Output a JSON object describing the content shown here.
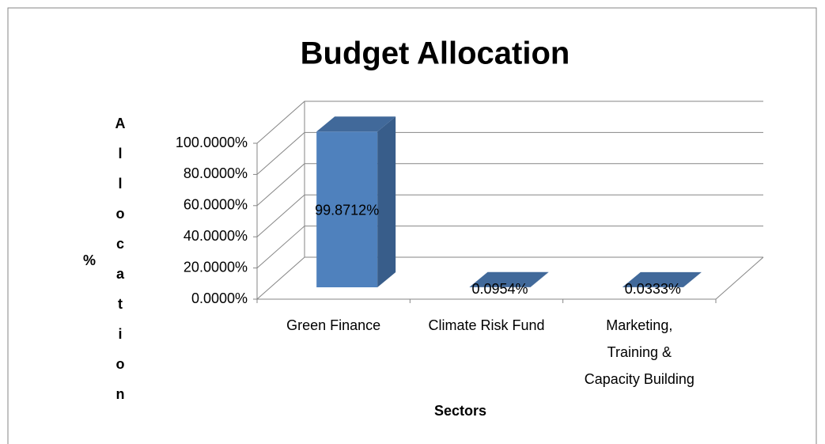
{
  "chart_data": {
    "type": "bar3d",
    "title": "Budget Allocation",
    "x_label": "Sectors",
    "y_label": "% Allocation",
    "categories": [
      "Green Finance",
      "Climate Risk Fund",
      "Marketing, Training & Capacity Building"
    ],
    "values": [
      99.8712,
      0.0954,
      0.0333
    ],
    "value_labels": [
      "99.8712%",
      "0.0954%",
      "0.0333%"
    ],
    "color": "#4f81bd",
    "ylim": [
      0,
      100
    ],
    "yticks": [
      {
        "value": 0,
        "label": "0.0000%"
      },
      {
        "value": 20,
        "label": "20.0000%"
      },
      {
        "value": 40,
        "label": "40.0000%"
      },
      {
        "value": 60,
        "label": "60.0000%"
      },
      {
        "value": 80,
        "label": "80.0000%"
      },
      {
        "value": 100,
        "label": "100.0000%"
      }
    ],
    "grid": true
  }
}
